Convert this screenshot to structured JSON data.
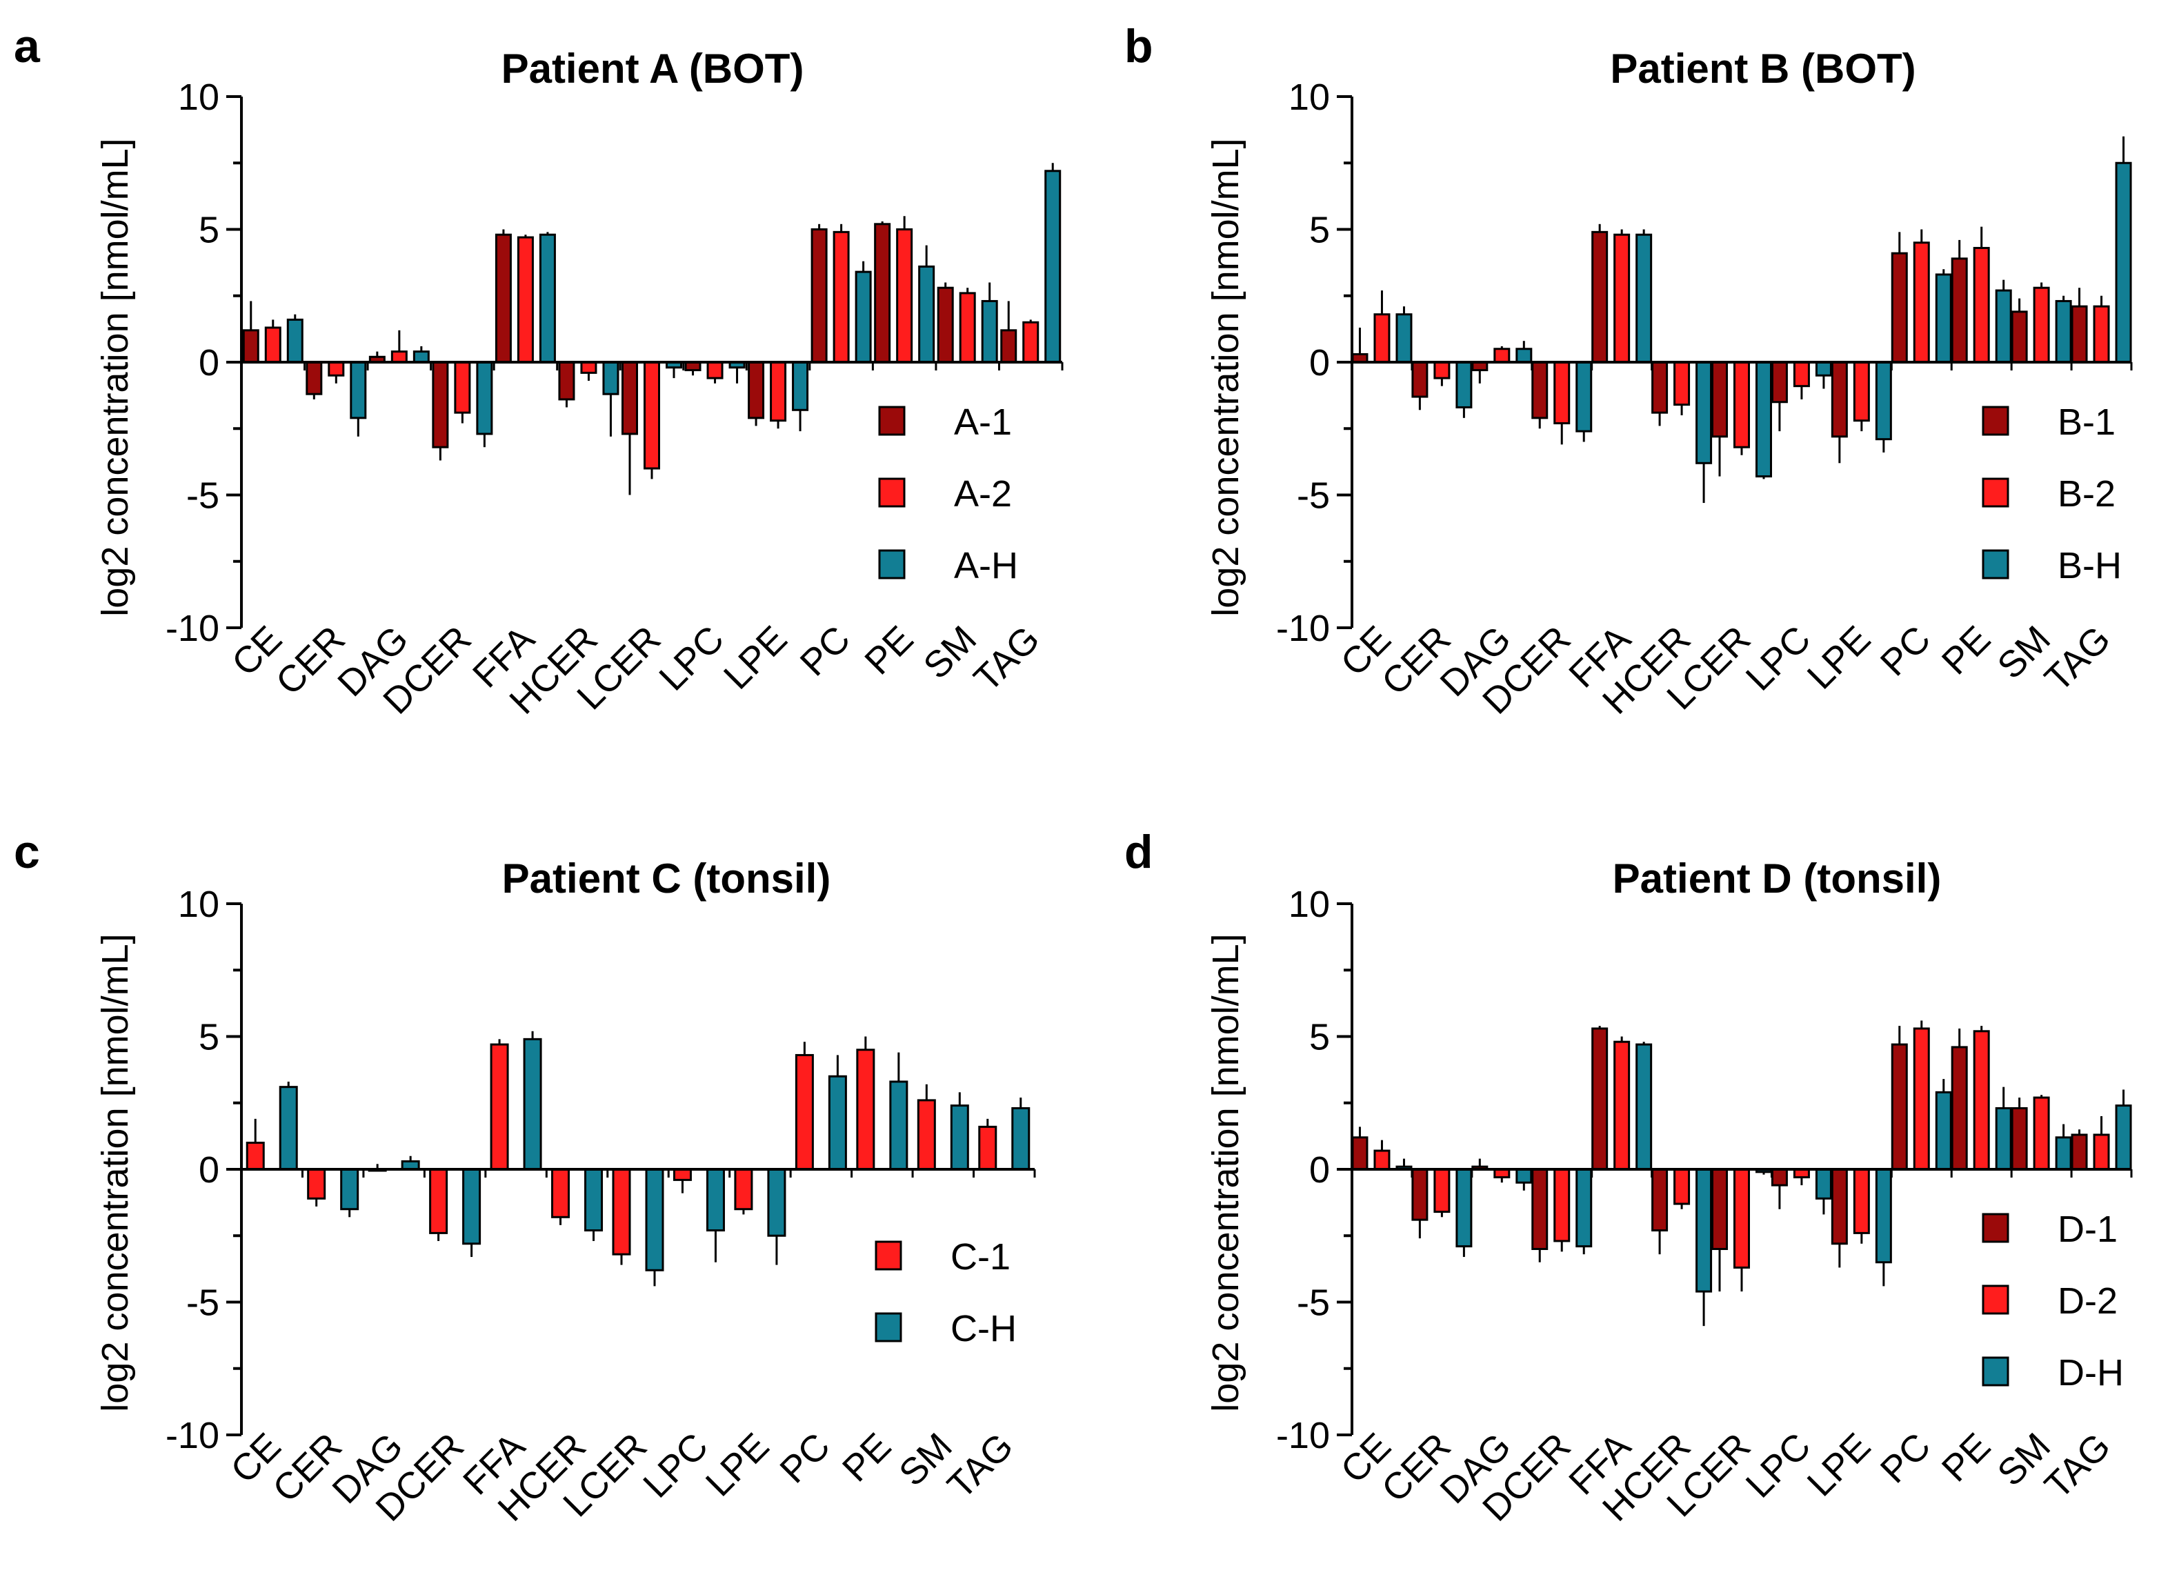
{
  "colors": {
    "sample_1": "#9b0a0a",
    "sample_2": "#ff1d1d",
    "healthy": "#127e94",
    "axis": "#000000"
  },
  "chart_data": [
    {
      "type": "bar",
      "letter": "a",
      "title": "Patient A (BOT)",
      "xlabel": "",
      "ylabel": "log2 concentration [nmol/mL]",
      "ylim": [
        -10,
        10
      ],
      "yticks": [
        "10",
        "5",
        "0",
        "-5",
        "-10"
      ],
      "categories": [
        "CE",
        "CER",
        "DAG",
        "DCER",
        "FFA",
        "HCER",
        "LCER",
        "LPC",
        "LPE",
        "PC",
        "PE",
        "SM",
        "TAG"
      ],
      "series": [
        {
          "name": "A-1",
          "color_key": "sample_1",
          "values": [
            1.2,
            -1.2,
            0.2,
            -3.2,
            4.8,
            -1.4,
            -2.7,
            -0.3,
            -2.1,
            5.0,
            5.2,
            2.8,
            1.2
          ],
          "errors": [
            1.1,
            0.2,
            0.2,
            0.5,
            0.2,
            0.3,
            2.3,
            0.2,
            0.3,
            0.2,
            0.1,
            0.2,
            1.1
          ]
        },
        {
          "name": "A-2",
          "color_key": "sample_2",
          "values": [
            1.3,
            -0.5,
            0.4,
            -1.9,
            4.7,
            -0.4,
            -4.0,
            -0.6,
            -2.2,
            4.9,
            5.0,
            2.6,
            1.5
          ],
          "errors": [
            0.3,
            0.3,
            0.8,
            0.4,
            0.1,
            0.3,
            0.4,
            0.2,
            0.3,
            0.3,
            0.5,
            0.2,
            0.1
          ]
        },
        {
          "name": "A-H",
          "color_key": "healthy",
          "values": [
            1.6,
            -2.1,
            0.4,
            -2.7,
            4.8,
            -1.2,
            -0.2,
            -0.2,
            -1.8,
            3.4,
            3.6,
            2.3,
            7.2
          ],
          "errors": [
            0.2,
            0.7,
            0.2,
            0.5,
            0.1,
            1.6,
            0.4,
            0.6,
            0.8,
            0.4,
            0.8,
            0.7,
            0.3
          ]
        }
      ]
    },
    {
      "type": "bar",
      "letter": "b",
      "title": "Patient B (BOT)",
      "xlabel": "",
      "ylabel": "log2 concentration [nmol/mL]",
      "ylim": [
        -10,
        10
      ],
      "yticks": [
        "10",
        "5",
        "0",
        "-5",
        "-10"
      ],
      "categories": [
        "CE",
        "CER",
        "DAG",
        "DCER",
        "FFA",
        "HCER",
        "LCER",
        "LPC",
        "LPE",
        "PC",
        "PE",
        "SM",
        "TAG"
      ],
      "series": [
        {
          "name": "B-1",
          "color_key": "sample_1",
          "values": [
            0.3,
            -1.3,
            -0.3,
            -2.1,
            4.9,
            -1.9,
            -2.8,
            -1.5,
            -2.8,
            4.1,
            3.9,
            1.9,
            2.1
          ],
          "errors": [
            1.0,
            0.5,
            0.5,
            0.4,
            0.3,
            0.5,
            1.5,
            1.1,
            1.0,
            0.8,
            0.7,
            0.5,
            0.7
          ]
        },
        {
          "name": "B-2",
          "color_key": "sample_2",
          "values": [
            1.8,
            -0.6,
            0.5,
            -2.3,
            4.8,
            -1.6,
            -3.2,
            -0.9,
            -2.2,
            4.5,
            4.3,
            2.8,
            2.1
          ],
          "errors": [
            0.9,
            0.3,
            0.1,
            0.8,
            0.2,
            0.4,
            0.3,
            0.5,
            0.4,
            0.5,
            0.8,
            0.2,
            0.4
          ]
        },
        {
          "name": "B-H",
          "color_key": "healthy",
          "values": [
            1.8,
            -1.7,
            0.5,
            -2.6,
            4.8,
            -3.8,
            -4.3,
            -0.5,
            -2.9,
            3.3,
            2.7,
            2.3,
            7.5
          ],
          "errors": [
            0.3,
            0.4,
            0.3,
            0.4,
            0.2,
            1.5,
            0.1,
            0.5,
            0.5,
            0.2,
            0.4,
            0.2,
            1.0
          ]
        }
      ]
    },
    {
      "type": "bar",
      "letter": "c",
      "title": "Patient C (tonsil)",
      "xlabel": "",
      "ylabel": "log2 concentration [nmol/mL]",
      "ylim": [
        -10,
        10
      ],
      "yticks": [
        "10",
        "5",
        "0",
        "-5",
        "-10"
      ],
      "categories": [
        "CE",
        "CER",
        "DAG",
        "DCER",
        "FFA",
        "HCER",
        "LCER",
        "LPC",
        "LPE",
        "PC",
        "PE",
        "SM",
        "TAG"
      ],
      "series": [
        {
          "name": "C-1",
          "color_key": "sample_2",
          "values": [
            1.0,
            -1.1,
            0.0,
            -2.4,
            4.7,
            -1.8,
            -3.2,
            -0.4,
            -1.5,
            4.3,
            4.5,
            2.6,
            1.6
          ],
          "errors": [
            0.9,
            0.3,
            0.2,
            0.3,
            0.2,
            0.3,
            0.4,
            0.5,
            0.2,
            0.5,
            0.5,
            0.6,
            0.3
          ]
        },
        {
          "name": "C-H",
          "color_key": "healthy",
          "values": [
            3.1,
            -1.5,
            0.3,
            -2.8,
            4.9,
            -2.3,
            -3.8,
            -2.3,
            -2.5,
            3.5,
            3.3,
            2.4,
            2.3
          ],
          "errors": [
            0.2,
            0.3,
            0.2,
            0.5,
            0.3,
            0.4,
            0.6,
            1.2,
            1.1,
            0.8,
            1.1,
            0.5,
            0.4
          ]
        }
      ]
    },
    {
      "type": "bar",
      "letter": "d",
      "title": "Patient D (tonsil)",
      "xlabel": "",
      "ylabel": "log2 concentration [nmol/mL]",
      "ylim": [
        -10,
        10
      ],
      "yticks": [
        "10",
        "5",
        "0",
        "-5",
        "-10"
      ],
      "categories": [
        "CE",
        "CER",
        "DAG",
        "DCER",
        "FFA",
        "HCER",
        "LCER",
        "LPC",
        "LPE",
        "PC",
        "PE",
        "SM",
        "TAG"
      ],
      "series": [
        {
          "name": "D-1",
          "color_key": "sample_1",
          "values": [
            1.2,
            -1.9,
            0.1,
            -3.0,
            5.3,
            -2.3,
            -3.0,
            -0.6,
            -2.8,
            4.7,
            4.6,
            2.3,
            1.3
          ],
          "errors": [
            0.4,
            0.7,
            0.3,
            0.5,
            0.1,
            0.9,
            1.6,
            0.9,
            0.9,
            0.7,
            0.7,
            0.4,
            0.2
          ]
        },
        {
          "name": "D-2",
          "color_key": "sample_2",
          "values": [
            0.7,
            -1.6,
            -0.3,
            -2.7,
            4.8,
            -1.3,
            -3.7,
            -0.3,
            -2.4,
            5.3,
            5.2,
            2.7,
            1.3
          ],
          "errors": [
            0.4,
            0.2,
            0.2,
            0.4,
            0.2,
            0.2,
            0.9,
            0.3,
            0.4,
            0.3,
            0.2,
            0.1,
            0.7
          ]
        },
        {
          "name": "D-H",
          "color_key": "healthy",
          "values": [
            0.1,
            -2.9,
            -0.5,
            -2.9,
            4.7,
            -4.6,
            -0.1,
            -1.1,
            -3.5,
            2.9,
            2.3,
            1.2,
            2.4
          ],
          "errors": [
            0.3,
            0.4,
            0.3,
            0.3,
            0.1,
            1.3,
            0.1,
            0.6,
            0.9,
            0.5,
            0.8,
            0.5,
            0.6
          ]
        }
      ]
    }
  ]
}
